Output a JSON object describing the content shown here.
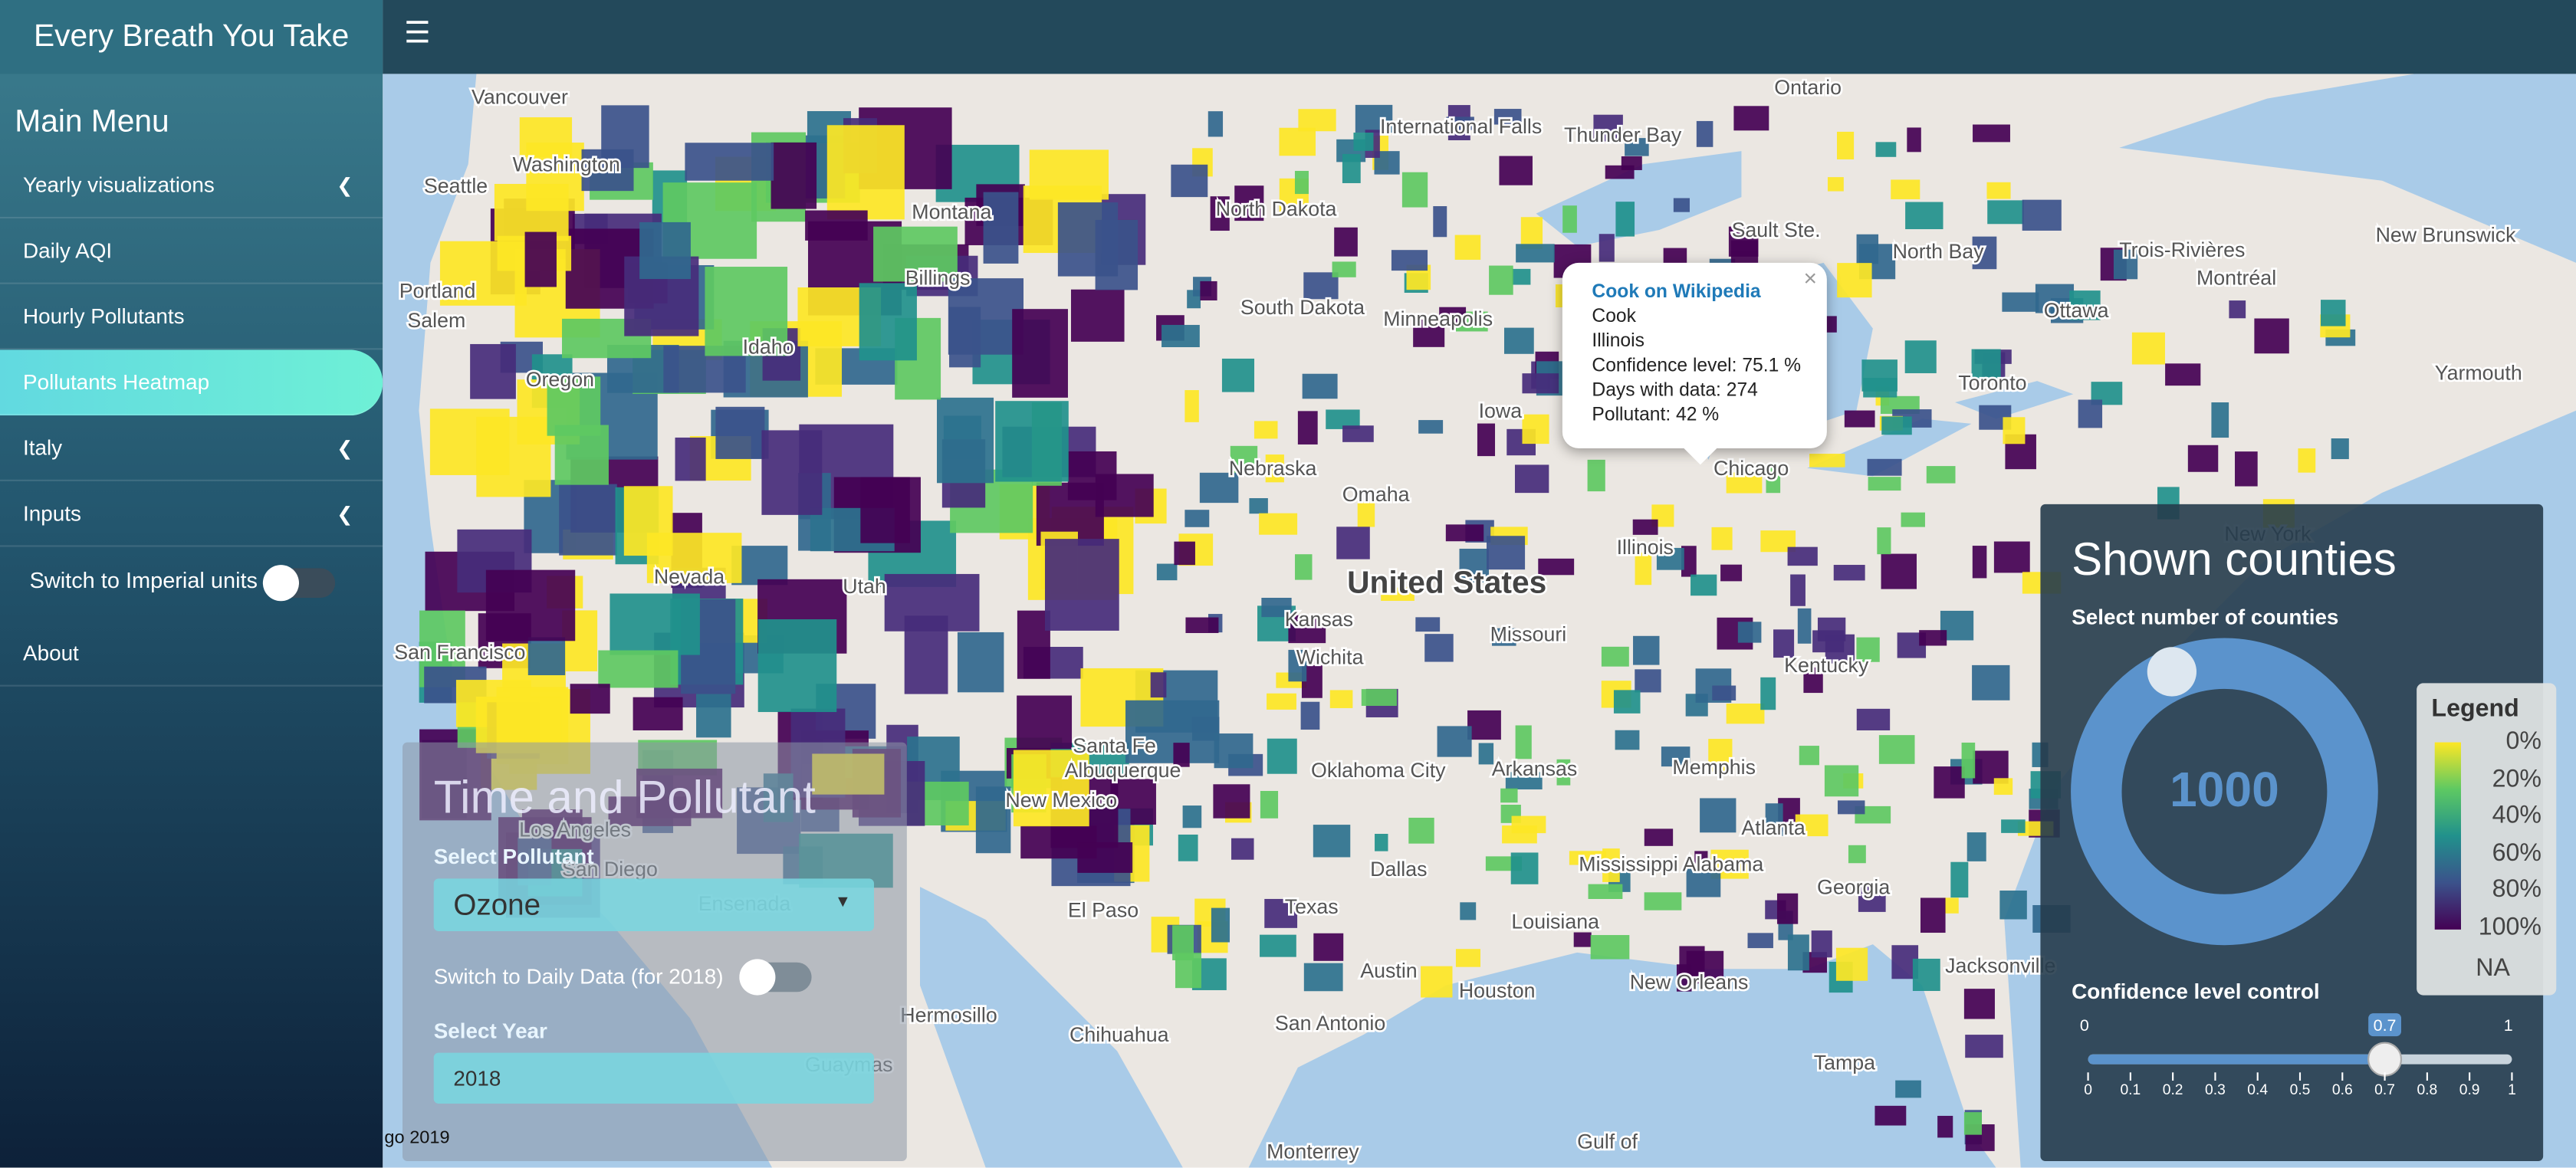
{
  "header": {
    "title": "Every Breath You Take"
  },
  "sidebar": {
    "heading": "Main Menu",
    "items": [
      "Yearly visualizations",
      "Daily AQI",
      "Hourly Pollutants",
      "Pollutants Heatmap",
      "Italy",
      "Inputs"
    ],
    "toggle_label": "Switch to Imperial units",
    "about": "About"
  },
  "popup": {
    "link": "Cook on Wikipedia",
    "lines": [
      "Cook",
      "Illinois",
      "Confidence level: 75.1 %",
      "Days with data: 274",
      "Pollutant: 42 %"
    ]
  },
  "time_panel": {
    "title": "Time and Pollutant",
    "pollutant_label": "Select Pollutant",
    "pollutant": "Ozone",
    "daily_toggle": "Switch to Daily Data (for 2018)",
    "year_label": "Select Year",
    "year": "2018"
  },
  "footer": "go 2019",
  "counties_panel": {
    "title": "Shown counties",
    "knob_label": "Select number of counties",
    "knob_value": 1000,
    "slider_label": "Confidence level control",
    "slider": {
      "min": 0,
      "max": 1,
      "value": 0.7,
      "ticks": [
        0,
        0.1,
        0.2,
        0.3,
        0.4,
        0.5,
        0.6,
        0.7,
        0.8,
        0.9,
        1
      ]
    }
  },
  "legend": {
    "title": "Legend",
    "labels": [
      "0%",
      "20%",
      "40%",
      "60%",
      "80%",
      "100%"
    ],
    "na": "NA"
  },
  "map_labels": [
    "Vancouver",
    "Washington",
    "Seattle",
    "Portland",
    "Salem",
    "Oregon",
    "Idaho",
    "Billings",
    "Montana",
    "Nevada",
    "Utah",
    "San Francisco",
    "Los Angeles",
    "San Diego",
    "Ensenada",
    "Hermosillo",
    "Chihuahua",
    "Guaymas",
    "Monterrey",
    "Santa Fe",
    "Albuquerque",
    "New Mexico",
    "El Paso",
    "Texas",
    "San Antonio",
    "Austin",
    "Houston",
    "Dallas",
    "Oklahoma City",
    "Kansas",
    "Wichita",
    "Nebraska",
    "Omaha",
    "Iowa",
    "Minneapolis",
    "South Dakota",
    "North Dakota",
    "United States",
    "Missouri",
    "Arkansas",
    "Memphis",
    "Louisiana",
    "New Orleans",
    "Mississippi Alabama",
    "Atlanta",
    "Georgia",
    "Jacksonville",
    "Tampa",
    "Kentucky",
    "Illinois",
    "Chicago",
    "Toronto",
    "Ottawa",
    "Montréal",
    "Trois-Rivières",
    "North Bay",
    "Sault Ste.",
    "Thunder Bay",
    "International Falls",
    "Ontario",
    "New Brunswick",
    "Yarmouth",
    "New York",
    "Gulf of"
  ]
}
